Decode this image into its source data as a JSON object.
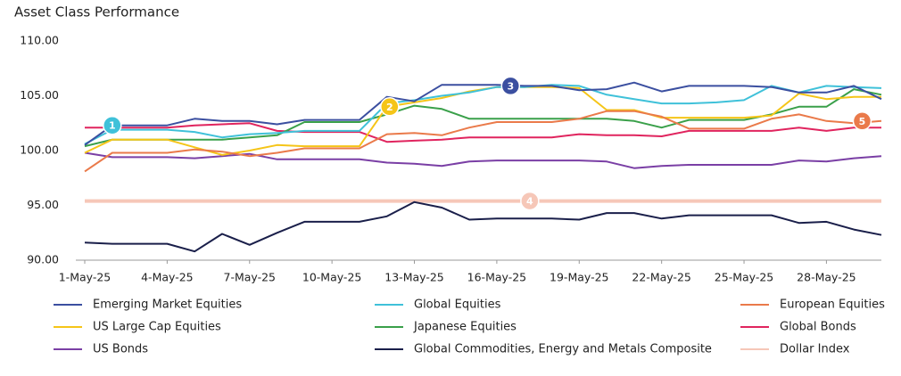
{
  "chart_data": {
    "type": "line",
    "title": "Asset Class Performance",
    "categories": [
      "1-May-25",
      null,
      null,
      "4-May-25",
      null,
      null,
      "7-May-25",
      null,
      null,
      "10-May-25",
      null,
      null,
      "13-May-25",
      null,
      null,
      "16-May-25",
      null,
      null,
      "19-May-25",
      null,
      null,
      "22-May-25",
      null,
      null,
      "25-May-25",
      null,
      null,
      "28-May-25",
      null,
      null
    ],
    "ylim": [
      90,
      110
    ],
    "yticks": [
      {
        "value": 90,
        "label": "90.00"
      },
      {
        "value": 95,
        "label": "95.00"
      },
      {
        "value": 100,
        "label": "100.00"
      },
      {
        "value": 105,
        "label": "105.00"
      },
      {
        "value": 110,
        "label": "110.00"
      }
    ],
    "grid": false,
    "legend": "bottom",
    "series": [
      {
        "name": "Emerging Market Equities",
        "color": "#3b4fa0",
        "values": [
          100.5,
          102.3,
          102.3,
          102.3,
          102.9,
          102.7,
          102.7,
          102.4,
          102.8,
          102.8,
          102.8,
          104.9,
          104.5,
          106.0,
          106.0,
          106.0,
          105.9,
          105.9,
          105.5,
          105.6,
          106.2,
          105.4,
          105.9,
          105.9,
          105.9,
          105.8,
          105.3,
          105.3,
          105.9,
          104.7
        ]
      },
      {
        "name": "Global Equities",
        "color": "#3fc1d9",
        "values": [
          100.6,
          101.9,
          101.9,
          101.9,
          101.7,
          101.2,
          101.5,
          101.6,
          101.8,
          101.8,
          101.8,
          104.3,
          104.6,
          105.0,
          105.3,
          105.8,
          105.8,
          106.0,
          105.9,
          105.1,
          104.7,
          104.3,
          104.3,
          104.4,
          104.6,
          105.9,
          105.3,
          105.9,
          105.8,
          105.7
        ]
      },
      {
        "name": "European Equities",
        "color": "#ea7a4a",
        "values": [
          98.1,
          99.8,
          99.8,
          99.8,
          100.1,
          99.9,
          99.5,
          99.8,
          100.2,
          100.2,
          100.2,
          101.5,
          101.6,
          101.4,
          102.1,
          102.6,
          102.6,
          102.6,
          102.9,
          103.6,
          103.6,
          103.1,
          102.0,
          102.0,
          102.0,
          102.9,
          103.3,
          102.7,
          102.5,
          102.7
        ]
      },
      {
        "name": "US Large Cap Equities",
        "color": "#f5c518",
        "values": [
          99.8,
          101.0,
          101.0,
          101.0,
          100.3,
          99.6,
          100.0,
          100.5,
          100.4,
          100.4,
          100.4,
          104.0,
          104.4,
          104.8,
          105.4,
          105.8,
          105.8,
          105.8,
          105.7,
          103.7,
          103.7,
          103.0,
          103.0,
          103.0,
          103.0,
          103.2,
          105.2,
          104.7,
          104.9,
          104.9
        ]
      },
      {
        "name": "Japanese Equities",
        "color": "#3aa04a",
        "values": [
          100.4,
          101.0,
          101.0,
          101.0,
          101.0,
          101.0,
          101.2,
          101.4,
          102.6,
          102.6,
          102.6,
          103.3,
          104.1,
          103.8,
          102.9,
          102.9,
          102.9,
          102.9,
          102.9,
          102.9,
          102.7,
          102.1,
          102.8,
          102.8,
          102.8,
          103.3,
          104.0,
          104.0,
          105.6,
          105.1
        ]
      },
      {
        "name": "Global Bonds",
        "color": "#e0245e",
        "values": [
          102.1,
          102.1,
          102.1,
          102.1,
          102.3,
          102.4,
          102.5,
          101.8,
          101.7,
          101.7,
          101.7,
          100.8,
          100.9,
          101.0,
          101.2,
          101.2,
          101.2,
          101.2,
          101.5,
          101.4,
          101.4,
          101.3,
          101.8,
          101.8,
          101.8,
          101.8,
          102.1,
          101.8,
          102.1,
          102.1
        ]
      },
      {
        "name": "US Bonds",
        "color": "#7a3fa5",
        "values": [
          99.8,
          99.4,
          99.4,
          99.4,
          99.3,
          99.5,
          99.7,
          99.2,
          99.2,
          99.2,
          99.2,
          98.9,
          98.8,
          98.6,
          99.0,
          99.1,
          99.1,
          99.1,
          99.1,
          99.0,
          98.4,
          98.6,
          98.7,
          98.7,
          98.7,
          98.7,
          99.1,
          99.0,
          99.3,
          99.5
        ]
      },
      {
        "name": "Global Commodities, Energy and Metals Composite",
        "color": "#1a1f4a",
        "values": [
          91.6,
          91.5,
          91.5,
          91.5,
          90.8,
          92.4,
          91.4,
          92.5,
          93.5,
          93.5,
          93.5,
          94.0,
          95.3,
          94.8,
          93.7,
          93.8,
          93.8,
          93.8,
          93.7,
          94.3,
          94.3,
          93.8,
          94.1,
          94.1,
          94.1,
          94.1,
          93.4,
          93.5,
          92.8,
          92.3
        ]
      },
      {
        "name": "Dollar Index",
        "color": "#f6c7b8",
        "width": 4,
        "values": [
          95.4,
          95.4,
          95.4,
          95.4,
          95.4,
          95.4,
          95.4,
          95.4,
          95.4,
          95.4,
          95.4,
          95.4,
          95.4,
          95.4,
          95.4,
          95.4,
          95.4,
          95.4,
          95.4,
          95.4,
          95.4,
          95.4,
          95.4,
          95.4,
          95.4,
          95.4,
          95.4,
          95.4,
          95.4,
          95.4
        ]
      }
    ],
    "annotations": [
      {
        "text": "1",
        "x": 1,
        "y": 102.3,
        "color": "#3fc1d9"
      },
      {
        "text": "2",
        "x": 11.1,
        "y": 104.0,
        "color": "#f5c518"
      },
      {
        "text": "3",
        "x": 15.5,
        "y": 105.9,
        "color": "#3b4fa0"
      },
      {
        "text": "4",
        "x": 16.2,
        "y": 95.4,
        "color": "#f6c7b8"
      },
      {
        "text": "5",
        "x": 28.3,
        "y": 102.7,
        "color": "#ea7a4a"
      }
    ]
  }
}
